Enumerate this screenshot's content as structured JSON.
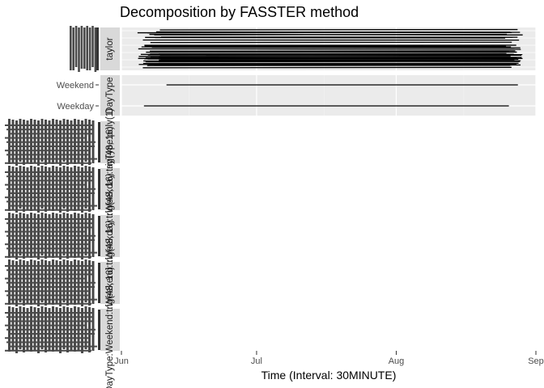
{
  "chart_data": {
    "type": "line",
    "title": "Decomposition by FASSTER method",
    "xlabel": "Time (Interval: 30MINUTE)",
    "ylabel": "",
    "x_ticks": [
      "Jun",
      "Jul",
      "Aug",
      "Sep"
    ],
    "xlim": [
      "2016-06-01",
      "2016-09-01"
    ],
    "grid": true,
    "facets": [
      {
        "name": "taylor",
        "kind": "overplotted",
        "series_count": 50,
        "start": "2016-06-06",
        "end": "2016-08-28"
      },
      {
        "name": "DayType",
        "kind": "category",
        "y_categories": [
          "Weekend",
          "Weekday"
        ],
        "series": [
          {
            "category": "Weekend",
            "start": "2016-06-11",
            "end": "2016-08-28"
          },
          {
            "category": "Weekday",
            "start": "2016-06-06",
            "end": "2016-08-26"
          }
        ]
      },
      {
        "name": "DayType:poly(1)",
        "kind": "empty"
      },
      {
        "name": "DayType:Weekday:trig(48, 16)",
        "kind": "empty"
      },
      {
        "name": "DayType:Weekday:trig(48, 16)",
        "kind": "empty"
      },
      {
        "name": "DayType:Weekend:trig(48, 16)",
        "kind": "empty"
      },
      {
        "name": "DayType:Weekend:trig(48, 16)",
        "kind": "empty"
      }
    ]
  }
}
